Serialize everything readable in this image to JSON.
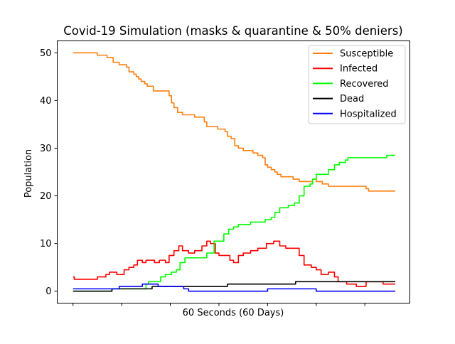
{
  "chart_data": {
    "type": "line",
    "title": "Covid-19 Simulation (masks & quarantine & 50% deniers)",
    "xlabel": "60 Seconds (60 Days)",
    "ylabel": "Population",
    "xlim": [
      -1.3,
      27.7
    ],
    "ylim": [
      -2.5,
      52.5
    ],
    "yticks": [
      0,
      10,
      20,
      30,
      40,
      50
    ],
    "xticks": [
      0,
      4,
      8,
      12,
      16,
      20,
      24
    ],
    "grid": false,
    "legend_position": "top-right",
    "series": [
      {
        "name": "Susceptible",
        "color": "#ff7f0e",
        "points": [
          [
            0,
            50
          ],
          [
            2,
            50
          ],
          [
            2,
            49.5
          ],
          [
            2.8,
            49.5
          ],
          [
            2.8,
            49
          ],
          [
            3.3,
            49
          ],
          [
            3.3,
            48
          ],
          [
            3.8,
            48
          ],
          [
            3.8,
            47.5
          ],
          [
            4.4,
            47.5
          ],
          [
            4.4,
            47
          ],
          [
            4.6,
            47
          ],
          [
            4.6,
            46
          ],
          [
            5,
            46
          ],
          [
            5,
            45.5
          ],
          [
            5.2,
            45.5
          ],
          [
            5.2,
            45
          ],
          [
            5.4,
            45
          ],
          [
            5.4,
            44.5
          ],
          [
            5.6,
            44.5
          ],
          [
            5.6,
            44
          ],
          [
            5.9,
            44
          ],
          [
            5.9,
            43.5
          ],
          [
            6.1,
            43.5
          ],
          [
            6.1,
            43
          ],
          [
            6.6,
            43
          ],
          [
            6.6,
            42
          ],
          [
            7.9,
            42
          ],
          [
            7.9,
            41
          ],
          [
            8.1,
            41
          ],
          [
            8.1,
            39.5
          ],
          [
            8.3,
            39.5
          ],
          [
            8.3,
            38.5
          ],
          [
            8.6,
            38.5
          ],
          [
            8.6,
            37.5
          ],
          [
            9,
            37.5
          ],
          [
            9,
            37
          ],
          [
            10,
            37
          ],
          [
            10,
            36.5
          ],
          [
            10.8,
            36.5
          ],
          [
            10.8,
            35.5
          ],
          [
            11,
            35.5
          ],
          [
            11,
            34.5
          ],
          [
            11.9,
            34.5
          ],
          [
            11.9,
            34
          ],
          [
            12.5,
            34
          ],
          [
            12.5,
            33.5
          ],
          [
            12.7,
            33.5
          ],
          [
            12.7,
            32.5
          ],
          [
            13,
            32.5
          ],
          [
            13,
            32
          ],
          [
            13.3,
            32
          ],
          [
            13.3,
            30.5
          ],
          [
            13.6,
            30.5
          ],
          [
            13.6,
            30
          ],
          [
            14,
            30
          ],
          [
            14,
            29.5
          ],
          [
            14.8,
            29.5
          ],
          [
            14.8,
            29
          ],
          [
            15.2,
            29
          ],
          [
            15.2,
            28.5
          ],
          [
            15.6,
            28.5
          ],
          [
            15.6,
            28
          ],
          [
            15.8,
            28
          ],
          [
            15.8,
            26.5
          ],
          [
            16,
            26.5
          ],
          [
            16,
            26
          ],
          [
            16.3,
            26
          ],
          [
            16.3,
            25.5
          ],
          [
            16.6,
            25.5
          ],
          [
            16.6,
            25
          ],
          [
            16.8,
            25
          ],
          [
            16.8,
            24.5
          ],
          [
            17.1,
            24.5
          ],
          [
            17.1,
            24
          ],
          [
            18.1,
            24
          ],
          [
            18.1,
            23.5
          ],
          [
            18.6,
            23.5
          ],
          [
            18.6,
            23
          ],
          [
            19.7,
            23
          ],
          [
            19.7,
            23.5
          ],
          [
            20,
            23.5
          ],
          [
            20,
            23
          ],
          [
            20.5,
            23
          ],
          [
            20.5,
            22.5
          ],
          [
            21,
            22.5
          ],
          [
            21,
            22
          ],
          [
            24.1,
            22
          ],
          [
            24.1,
            21.5
          ],
          [
            24.3,
            21.5
          ],
          [
            24.3,
            21
          ],
          [
            26.5,
            21
          ]
        ]
      },
      {
        "name": "Infected",
        "color": "#ff0000",
        "points": [
          [
            0,
            3
          ],
          [
            0.1,
            3
          ],
          [
            0.1,
            2.5
          ],
          [
            2,
            2.5
          ],
          [
            2,
            3
          ],
          [
            2.7,
            3
          ],
          [
            2.7,
            3.5
          ],
          [
            3,
            3.5
          ],
          [
            3,
            4
          ],
          [
            3.6,
            4
          ],
          [
            3.6,
            3.5
          ],
          [
            4.2,
            3.5
          ],
          [
            4.2,
            4.5
          ],
          [
            4.6,
            4.5
          ],
          [
            4.6,
            5
          ],
          [
            5,
            5
          ],
          [
            5,
            5.5
          ],
          [
            5.3,
            5.5
          ],
          [
            5.3,
            6.5
          ],
          [
            5.7,
            6.5
          ],
          [
            5.7,
            6
          ],
          [
            6,
            6
          ],
          [
            6,
            6.5
          ],
          [
            6.7,
            6.5
          ],
          [
            6.7,
            6
          ],
          [
            7.1,
            6
          ],
          [
            7.1,
            6.5
          ],
          [
            7.6,
            6.5
          ],
          [
            7.6,
            6
          ],
          [
            7.9,
            6
          ],
          [
            7.9,
            7.5
          ],
          [
            8.3,
            7.5
          ],
          [
            8.3,
            8.5
          ],
          [
            8.7,
            8.5
          ],
          [
            8.7,
            9.5
          ],
          [
            9,
            9.5
          ],
          [
            9,
            8.5
          ],
          [
            9.5,
            8.5
          ],
          [
            9.5,
            8
          ],
          [
            10,
            8
          ],
          [
            10,
            8.5
          ],
          [
            10.6,
            8.5
          ],
          [
            10.6,
            9.5
          ],
          [
            11,
            9.5
          ],
          [
            11,
            10.5
          ],
          [
            11.3,
            10.5
          ],
          [
            11.3,
            10
          ],
          [
            11.7,
            10
          ],
          [
            11.7,
            8
          ],
          [
            12,
            8
          ],
          [
            12,
            7.5
          ],
          [
            12.9,
            7.5
          ],
          [
            12.9,
            6.5
          ],
          [
            13.2,
            6.5
          ],
          [
            13.2,
            6
          ],
          [
            13.6,
            6
          ],
          [
            13.6,
            7.5
          ],
          [
            14,
            7.5
          ],
          [
            14,
            8
          ],
          [
            14.6,
            8
          ],
          [
            14.6,
            8.5
          ],
          [
            15.2,
            8.5
          ],
          [
            15.2,
            9
          ],
          [
            15.9,
            9
          ],
          [
            15.9,
            10
          ],
          [
            16.5,
            10
          ],
          [
            16.5,
            10.5
          ],
          [
            17,
            10.5
          ],
          [
            17,
            9.5
          ],
          [
            17.5,
            9.5
          ],
          [
            17.5,
            9
          ],
          [
            18.6,
            9
          ],
          [
            18.6,
            7.5
          ],
          [
            19,
            7.5
          ],
          [
            19,
            5.5
          ],
          [
            19.6,
            5.5
          ],
          [
            19.6,
            5
          ],
          [
            20,
            5
          ],
          [
            20,
            4.5
          ],
          [
            20.4,
            4.5
          ],
          [
            20.4,
            3.5
          ],
          [
            21,
            3.5
          ],
          [
            21,
            4
          ],
          [
            21.5,
            4
          ],
          [
            21.5,
            3
          ],
          [
            21.8,
            3
          ],
          [
            21.8,
            2
          ],
          [
            22.5,
            2
          ],
          [
            22.5,
            1.5
          ],
          [
            23.3,
            1.5
          ],
          [
            23.3,
            1
          ],
          [
            24.1,
            1
          ],
          [
            24.1,
            2
          ],
          [
            25.5,
            2
          ],
          [
            25.5,
            1.5
          ],
          [
            26.5,
            1.5
          ]
        ]
      },
      {
        "name": "Recovered",
        "color": "#00ff00",
        "points": [
          [
            0,
            0
          ],
          [
            3.2,
            0
          ],
          [
            3.2,
            0.5
          ],
          [
            6,
            0.5
          ],
          [
            6,
            1.5
          ],
          [
            6.2,
            1.5
          ],
          [
            6.2,
            2
          ],
          [
            7.2,
            2
          ],
          [
            7.2,
            3
          ],
          [
            7.6,
            3
          ],
          [
            7.6,
            3.5
          ],
          [
            8.1,
            3.5
          ],
          [
            8.1,
            4
          ],
          [
            8.5,
            4
          ],
          [
            8.5,
            4.5
          ],
          [
            8.8,
            4.5
          ],
          [
            8.8,
            6
          ],
          [
            9.2,
            6
          ],
          [
            9.2,
            7
          ],
          [
            11,
            7
          ],
          [
            11,
            8
          ],
          [
            11.6,
            8
          ],
          [
            11.6,
            10.5
          ],
          [
            12.4,
            10.5
          ],
          [
            12.4,
            12
          ],
          [
            12.8,
            12
          ],
          [
            12.8,
            13
          ],
          [
            13.2,
            13
          ],
          [
            13.2,
            13.5
          ],
          [
            13.6,
            13.5
          ],
          [
            13.6,
            14
          ],
          [
            14.6,
            14
          ],
          [
            14.6,
            14.5
          ],
          [
            15.8,
            14.5
          ],
          [
            15.8,
            15
          ],
          [
            16.3,
            15
          ],
          [
            16.3,
            15.5
          ],
          [
            16.6,
            15.5
          ],
          [
            16.6,
            16.5
          ],
          [
            17,
            16.5
          ],
          [
            17,
            17.5
          ],
          [
            17.7,
            17.5
          ],
          [
            17.7,
            18
          ],
          [
            18.2,
            18
          ],
          [
            18.2,
            18.5
          ],
          [
            18.6,
            18.5
          ],
          [
            18.6,
            20
          ],
          [
            19,
            20
          ],
          [
            19,
            22
          ],
          [
            19.5,
            22
          ],
          [
            19.5,
            22.5
          ],
          [
            19.7,
            22.5
          ],
          [
            19.7,
            23.5
          ],
          [
            20,
            23.5
          ],
          [
            20,
            24.5
          ],
          [
            21,
            24.5
          ],
          [
            21,
            25.5
          ],
          [
            21.5,
            25.5
          ],
          [
            21.5,
            26.5
          ],
          [
            21.9,
            26.5
          ],
          [
            21.9,
            27
          ],
          [
            22.4,
            27
          ],
          [
            22.4,
            27.5
          ],
          [
            22.6,
            27.5
          ],
          [
            22.6,
            28
          ],
          [
            25.8,
            28
          ],
          [
            25.8,
            28.5
          ],
          [
            26.5,
            28.5
          ]
        ]
      },
      {
        "name": "Dead",
        "color": "#000000",
        "points": [
          [
            0,
            0
          ],
          [
            3.2,
            0
          ],
          [
            3.2,
            0.5
          ],
          [
            6.5,
            0.5
          ],
          [
            6.5,
            1
          ],
          [
            12.7,
            1
          ],
          [
            12.7,
            1.5
          ],
          [
            18.3,
            1.5
          ],
          [
            18.3,
            2
          ],
          [
            26.5,
            2
          ]
        ]
      },
      {
        "name": "Hospitalized",
        "color": "#0000ff",
        "points": [
          [
            0,
            0.5
          ],
          [
            3.8,
            0.5
          ],
          [
            3.8,
            1
          ],
          [
            5.7,
            1
          ],
          [
            5.7,
            1.5
          ],
          [
            7,
            1.5
          ],
          [
            7,
            1
          ],
          [
            9.1,
            1
          ],
          [
            9.1,
            0.5
          ],
          [
            9.5,
            0.5
          ],
          [
            9.5,
            0
          ],
          [
            16,
            0
          ],
          [
            16,
            0.5
          ],
          [
            20,
            0.5
          ],
          [
            20,
            0
          ],
          [
            26.5,
            0
          ]
        ]
      }
    ]
  }
}
